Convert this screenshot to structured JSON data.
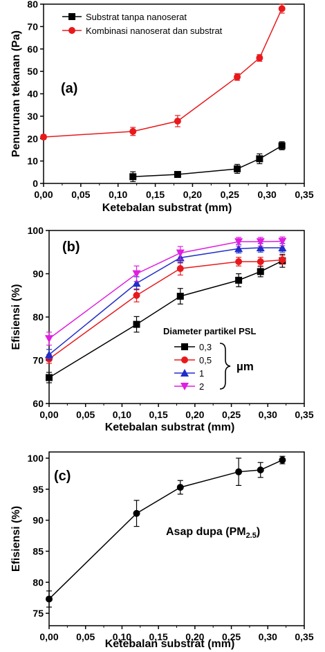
{
  "chart_data": [
    {
      "type": "line",
      "panel_label": "(a)",
      "xlabel": "Ketebalan substrat (mm)",
      "ylabel": "Penurunan tekanan (Pa)",
      "xlim": [
        0,
        0.35
      ],
      "ylim": [
        0,
        80
      ],
      "xticks": [
        "0,00",
        "0,05",
        "0,10",
        "0,15",
        "0,20",
        "0,25",
        "0,30",
        "0,35"
      ],
      "yticks": [
        "0",
        "10",
        "20",
        "30",
        "40",
        "50",
        "60",
        "70",
        "80"
      ],
      "legend_position": "top-left",
      "series": [
        {
          "name": "Substrat tanpa nanoserat",
          "color": "#000000",
          "marker": "square",
          "x": [
            0.12,
            0.18,
            0.26,
            0.29,
            0.32
          ],
          "y": [
            3.0,
            4.0,
            6.5,
            11.0,
            16.8
          ],
          "err": [
            2.2,
            1.2,
            2.0,
            2.2,
            1.8
          ]
        },
        {
          "name": "Kombinasi nanoserat dan substrat",
          "color": "#e8191c",
          "marker": "circle",
          "x": [
            0.0,
            0.12,
            0.18,
            0.26,
            0.29,
            0.32
          ],
          "y": [
            20.7,
            23.2,
            27.8,
            47.5,
            56.0,
            78.0
          ],
          "err": [
            1.0,
            1.8,
            2.5,
            1.5,
            1.5,
            2.0
          ]
        }
      ]
    },
    {
      "type": "line",
      "panel_label": "(b)",
      "xlabel": "Ketebalan substrat (mm)",
      "ylabel": "Efisiensi (%)",
      "xlim": [
        0,
        0.35
      ],
      "ylim": [
        60,
        100
      ],
      "xticks": [
        "0,00",
        "0,05",
        "0,10",
        "0,15",
        "0,20",
        "0,25",
        "0,30",
        "0,35"
      ],
      "yticks": [
        "60",
        "70",
        "80",
        "90",
        "100"
      ],
      "legend_title": "Diameter partikel PSL",
      "legend_unit": "µm",
      "legend_position": "bottom-right",
      "series": [
        {
          "name": "0,3",
          "color": "#000000",
          "marker": "square",
          "x": [
            0.0,
            0.12,
            0.18,
            0.26,
            0.29,
            0.32
          ],
          "y": [
            66.0,
            78.3,
            84.8,
            88.5,
            90.5,
            93.0
          ],
          "err": [
            1.2,
            1.8,
            1.8,
            1.5,
            1.2,
            1.5
          ]
        },
        {
          "name": "0,5",
          "color": "#e8191c",
          "marker": "circle",
          "x": [
            0.0,
            0.12,
            0.18,
            0.26,
            0.29,
            0.32
          ],
          "y": [
            70.3,
            85.0,
            91.2,
            92.8,
            92.8,
            93.2
          ],
          "err": [
            1.0,
            1.5,
            1.5,
            1.0,
            1.0,
            1.0
          ]
        },
        {
          "name": "1",
          "color": "#1f2ec8",
          "marker": "triangle-up",
          "x": [
            0.0,
            0.12,
            0.18,
            0.26,
            0.29,
            0.32
          ],
          "y": [
            71.3,
            87.8,
            93.7,
            95.8,
            96.0,
            96.0
          ],
          "err": [
            1.2,
            1.5,
            1.2,
            1.0,
            1.0,
            1.0
          ]
        },
        {
          "name": "2",
          "color": "#e01de0",
          "marker": "triangle-down",
          "x": [
            0.0,
            0.12,
            0.18,
            0.26,
            0.29,
            0.32
          ],
          "y": [
            75.0,
            90.0,
            94.8,
            97.4,
            97.4,
            97.5
          ],
          "err": [
            1.5,
            1.8,
            1.5,
            1.0,
            1.0,
            1.0
          ]
        }
      ]
    },
    {
      "type": "line",
      "panel_label": "(c)",
      "xlabel": "Ketebalan substrat (mm)",
      "ylabel": "Efisiensi (%)",
      "xlim": [
        0,
        0.35
      ],
      "ylim": [
        73,
        101
      ],
      "xticks": [
        "0,00",
        "0,05",
        "0,10",
        "0,15",
        "0,20",
        "0,25",
        "0,30",
        "0,35"
      ],
      "yticks": [
        "75",
        "80",
        "85",
        "90",
        "95",
        "100"
      ],
      "annotation": {
        "main": "Asap dupa (PM",
        "sub": "2.5",
        "close": ")"
      },
      "series": [
        {
          "color": "#000000",
          "marker": "circle",
          "x": [
            0.0,
            0.12,
            0.18,
            0.26,
            0.29,
            0.32
          ],
          "y": [
            77.3,
            91.1,
            95.3,
            97.8,
            98.1,
            99.7
          ],
          "err": [
            1.3,
            2.1,
            1.1,
            2.2,
            1.2,
            0.6
          ]
        }
      ]
    }
  ]
}
